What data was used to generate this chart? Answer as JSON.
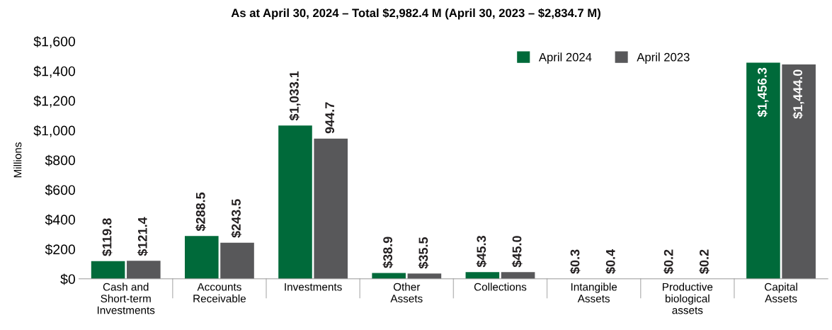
{
  "chart_data": {
    "type": "bar",
    "title": "As at April 30, 2024 – Total $2,982.4 M (April 30, 2023 – $2,834.7 M)",
    "ylabel": "Millions",
    "categories": [
      "Cash and\nShort-term\nInvestments",
      "Accounts\nReceivable",
      "Investments",
      "Other\nAssets",
      "Collections",
      "Intangible\nAssets",
      "Productive\nbiological\nassets",
      "Capital\nAssets"
    ],
    "series": [
      {
        "name": "April 2024",
        "color": "#006a3a",
        "values": [
          119.8,
          288.5,
          1033.1,
          38.9,
          45.3,
          0.3,
          0.2,
          1456.3
        ],
        "value_labels": [
          "$119.8",
          "$288.5",
          "$1,033.1",
          "$38.9",
          "$45.3",
          "$0.3",
          "$0.2",
          "$1,456.3"
        ]
      },
      {
        "name": "April 2023",
        "color": "#58585a",
        "values": [
          121.4,
          243.5,
          944.7,
          35.5,
          45.0,
          0.4,
          0.2,
          1444.0
        ],
        "value_labels": [
          "$121.4",
          "$243.5",
          "944.7",
          "$35.5",
          "$45.0",
          "$0.4",
          "$0.2",
          "$1,444.0"
        ]
      }
    ],
    "ylim": [
      0,
      1600
    ],
    "yticks": [
      {
        "value": 0,
        "label": "$0"
      },
      {
        "value": 200,
        "label": "$200"
      },
      {
        "value": 400,
        "label": "$400"
      },
      {
        "value": 600,
        "label": "$600"
      },
      {
        "value": 800,
        "label": "$800"
      },
      {
        "value": 1000,
        "label": "$1,000"
      },
      {
        "value": 1200,
        "label": "$1,200"
      },
      {
        "value": 1400,
        "label": "$1,400"
      },
      {
        "value": 1600,
        "label": "$1,600"
      }
    ],
    "grid": false,
    "legend": "top right"
  }
}
